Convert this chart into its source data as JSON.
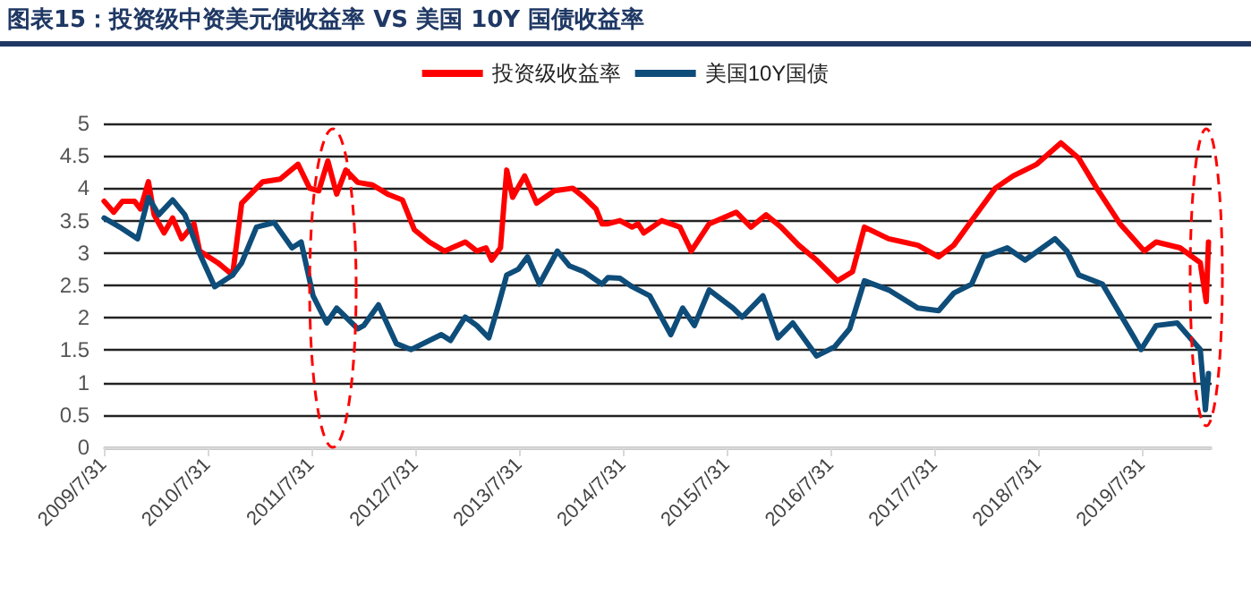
{
  "chart_data": {
    "type": "line",
    "title": "图表15：投资级中资美元债收益率 VS 美国 10Y 国债收益率",
    "series": [
      {
        "name": "投资级收益率",
        "color": "#ff0000",
        "x": [
          "2009-08-01",
          "2009-09-04",
          "2009-10-05",
          "2009-11-16",
          "2009-12-07",
          "2010-01-04",
          "2010-01-24",
          "2010-02-28",
          "2010-03-30",
          "2010-05-01",
          "2010-06-13",
          "2010-07-03",
          "2010-09-05",
          "2010-10-27",
          "2010-11-28",
          "2011-02-10",
          "2011-04-12",
          "2011-06-14",
          "2011-07-25",
          "2011-08-26",
          "2011-09-27",
          "2011-10-28",
          "2011-11-29",
          "2012-01-10",
          "2012-03-02",
          "2012-04-24",
          "2012-06-15",
          "2012-07-27",
          "2012-09-18",
          "2012-11-10",
          "2013-01-22",
          "2013-03-04",
          "2013-04-05",
          "2013-04-25",
          "2013-05-26",
          "2013-06-17",
          "2013-07-08",
          "2013-08-19",
          "2013-09-30",
          "2013-12-02",
          "2014-02-04",
          "2014-03-16",
          "2014-04-27",
          "2014-05-18",
          "2014-06-08",
          "2014-07-20",
          "2014-09-01",
          "2014-09-22",
          "2014-10-12",
          "2014-12-14",
          "2015-02-16",
          "2015-03-28",
          "2015-05-30",
          "2015-09-02",
          "2015-10-24",
          "2015-12-16",
          "2016-02-07",
          "2016-04-09",
          "2016-06-11",
          "2016-08-23",
          "2016-10-15",
          "2016-11-26",
          "2017-02-19",
          "2017-06-02",
          "2017-08-14",
          "2017-10-06",
          "2017-12-08",
          "2018-03-01",
          "2018-05-03",
          "2018-07-25",
          "2018-10-18",
          "2018-12-20",
          "2019-02-21",
          "2019-05-14",
          "2019-08-07",
          "2019-09-18",
          "2019-12-11",
          "2020-02-20",
          "2020-03-12",
          "2020-03-20"
        ],
        "values": [
          3.8,
          3.63,
          3.8,
          3.8,
          3.68,
          4.1,
          3.59,
          3.31,
          3.54,
          3.22,
          3.45,
          3.03,
          2.85,
          2.66,
          3.77,
          4.1,
          4.14,
          4.37,
          4.0,
          3.96,
          4.42,
          3.91,
          4.28,
          4.09,
          4.05,
          3.91,
          3.82,
          3.36,
          3.17,
          3.03,
          3.17,
          3.03,
          3.08,
          2.89,
          3.08,
          4.28,
          3.86,
          4.19,
          3.77,
          3.96,
          4.0,
          3.86,
          3.68,
          3.45,
          3.45,
          3.5,
          3.4,
          3.45,
          3.31,
          3.5,
          3.4,
          3.03,
          3.45,
          3.63,
          3.4,
          3.59,
          3.4,
          3.12,
          2.89,
          2.57,
          2.71,
          3.4,
          3.22,
          3.12,
          2.94,
          3.12,
          3.5,
          4.0,
          4.19,
          4.37,
          4.7,
          4.46,
          4.0,
          3.45,
          3.03,
          3.17,
          3.08,
          2.85,
          2.25,
          3.17
        ]
      },
      {
        "name": "美国10Y国债",
        "color": "#0e4d7a",
        "x": [
          "2009-08-01",
          "2009-09-25",
          "2009-11-27",
          "2010-01-04",
          "2010-02-09",
          "2010-03-30",
          "2010-05-12",
          "2010-07-03",
          "2010-08-25",
          "2010-10-27",
          "2010-11-28",
          "2011-01-19",
          "2011-03-22",
          "2011-05-24",
          "2011-06-25",
          "2011-08-06",
          "2011-09-23",
          "2011-10-28",
          "2012-01-10",
          "2012-01-31",
          "2012-03-23",
          "2012-05-25",
          "2012-07-16",
          "2012-10-30",
          "2012-12-01",
          "2013-01-22",
          "2013-03-04",
          "2013-04-15",
          "2013-05-16",
          "2013-06-17",
          "2013-07-28",
          "2013-08-29",
          "2013-10-10",
          "2013-12-12",
          "2014-01-24",
          "2014-03-16",
          "2014-05-18",
          "2014-06-08",
          "2014-07-20",
          "2014-09-01",
          "2014-11-02",
          "2015-01-15",
          "2015-02-26",
          "2015-04-08",
          "2015-05-30",
          "2015-08-22",
          "2015-09-23",
          "2015-12-05",
          "2016-01-27",
          "2016-03-19",
          "2016-06-11",
          "2016-08-13",
          "2016-10-05",
          "2016-11-26",
          "2017-02-19",
          "2017-06-02",
          "2017-08-14",
          "2017-10-06",
          "2017-12-08",
          "2018-01-19",
          "2018-04-12",
          "2018-06-14",
          "2018-09-27",
          "2018-11-08",
          "2018-12-20",
          "2019-03-13",
          "2019-05-14",
          "2019-07-27",
          "2019-09-18",
          "2019-12-01",
          "2020-02-20",
          "2020-03-09",
          "2020-03-20"
        ],
        "values": [
          3.54,
          3.4,
          3.22,
          3.86,
          3.59,
          3.82,
          3.59,
          2.99,
          2.48,
          2.66,
          2.85,
          3.4,
          3.47,
          3.08,
          3.17,
          2.34,
          1.92,
          2.15,
          1.83,
          1.88,
          2.2,
          1.6,
          1.51,
          1.74,
          1.65,
          2.01,
          1.88,
          1.69,
          2.15,
          2.66,
          2.75,
          2.94,
          2.52,
          3.03,
          2.8,
          2.71,
          2.52,
          2.62,
          2.61,
          2.48,
          2.34,
          1.74,
          2.15,
          1.88,
          2.43,
          2.15,
          2.01,
          2.34,
          1.69,
          1.92,
          1.41,
          1.55,
          1.83,
          2.57,
          2.43,
          2.15,
          2.11,
          2.38,
          2.52,
          2.94,
          3.08,
          2.89,
          3.22,
          3.03,
          2.66,
          2.52,
          2.06,
          1.51,
          1.88,
          1.92,
          1.51,
          0.58,
          1.14
        ]
      }
    ],
    "xlim": [
      "2009-07-31",
      "2020-03-31"
    ],
    "xticks": [
      {
        "value": "2009-07-31",
        "label": "2009/7/31"
      },
      {
        "value": "2010-07-31",
        "label": "2010/7/31"
      },
      {
        "value": "2011-07-31",
        "label": "2011/7/31"
      },
      {
        "value": "2012-07-31",
        "label": "2012/7/31"
      },
      {
        "value": "2013-07-31",
        "label": "2013/7/31"
      },
      {
        "value": "2014-07-31",
        "label": "2014/7/31"
      },
      {
        "value": "2015-07-31",
        "label": "2015/7/31"
      },
      {
        "value": "2016-07-31",
        "label": "2016/7/31"
      },
      {
        "value": "2017-07-31",
        "label": "2017/7/31"
      },
      {
        "value": "2018-07-31",
        "label": "2018/7/31"
      },
      {
        "value": "2019-07-31",
        "label": "2019/7/31"
      }
    ],
    "ylim": [
      0,
      5
    ],
    "yticks": [
      0,
      0.5,
      1,
      1.5,
      2,
      2.5,
      3,
      3.5,
      4,
      4.5,
      5
    ],
    "grid": "y",
    "legend": "top",
    "marker": "none",
    "line_style": "solid"
  }
}
